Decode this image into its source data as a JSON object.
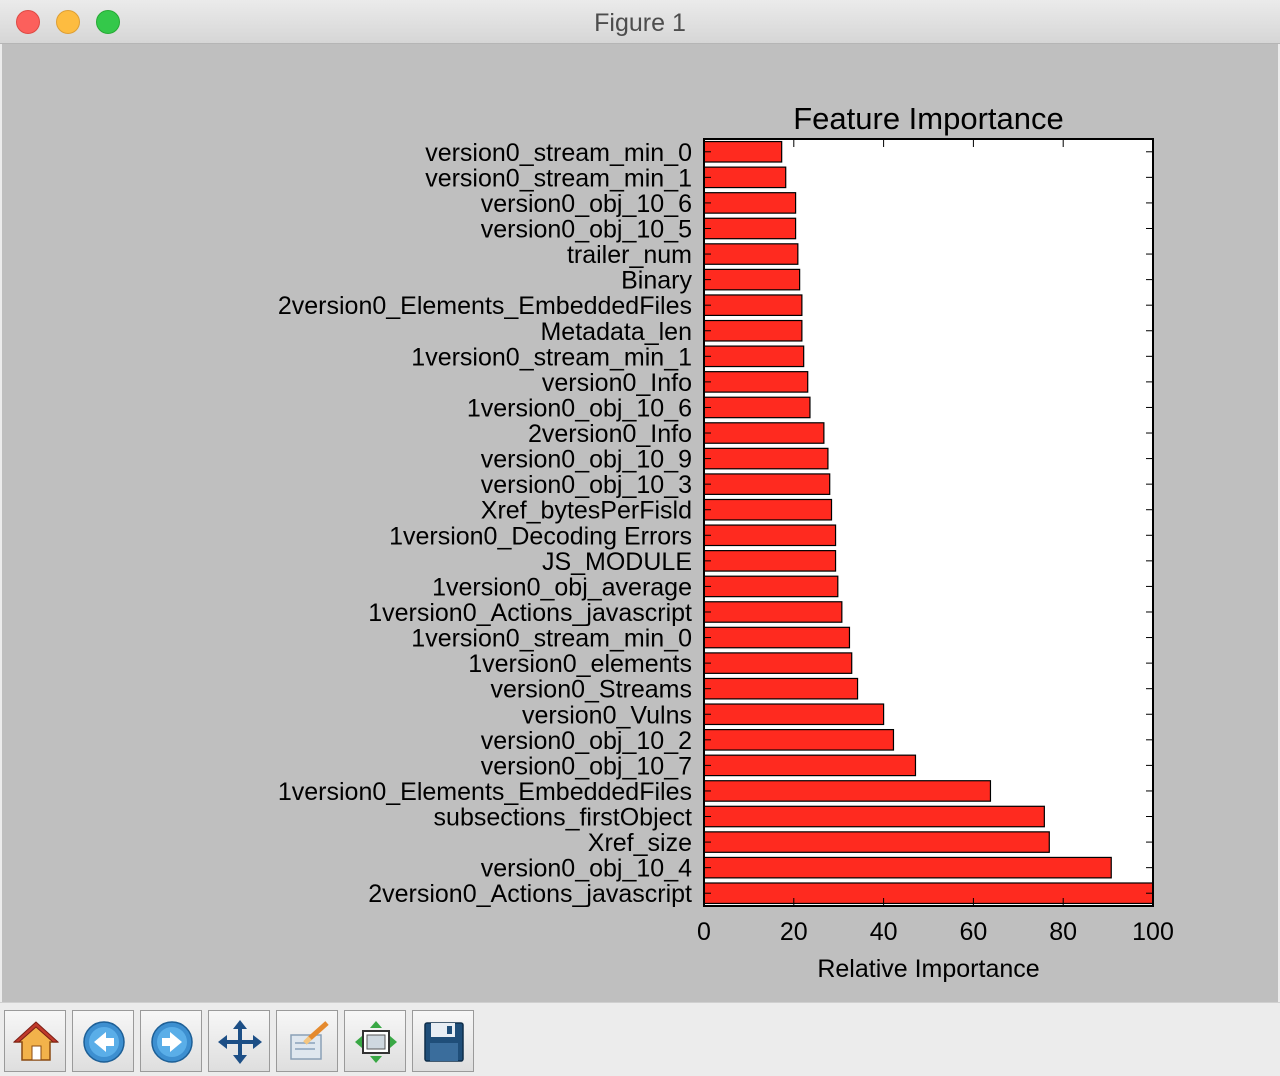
{
  "window": {
    "title": "Figure 1"
  },
  "toolbar": {
    "buttons": [
      {
        "icon": "home-icon"
      },
      {
        "icon": "back-arrow-icon"
      },
      {
        "icon": "forward-arrow-icon"
      },
      {
        "icon": "pan-icon"
      },
      {
        "icon": "zoom-rect-icon"
      },
      {
        "icon": "subplots-icon"
      },
      {
        "icon": "save-icon"
      }
    ]
  },
  "colors": {
    "bar_fill": "#ff2a1f",
    "bar_edge": "#000000",
    "plot_bg": "#ffffff",
    "figure_bg": "#bfbfbf"
  },
  "chart_data": {
    "type": "bar",
    "orientation": "horizontal",
    "title": "Feature Importance",
    "xlabel": "Relative Importance",
    "ylabel": "",
    "xlim": [
      0,
      100
    ],
    "xticks": [
      "0",
      "20",
      "40",
      "60",
      "80",
      "100"
    ],
    "grid": false,
    "legend": "none",
    "categories": [
      "version0_stream_min_0",
      "version0_stream_min_1",
      "version0_obj_10_6",
      "version0_obj_10_5",
      "trailer_num",
      "Binary",
      "2version0_Elements_EmbeddedFiles",
      "Metadata_len",
      "1version0_stream_min_1",
      "version0_Info",
      "1version0_obj_10_6",
      "2version0_Info",
      "version0_obj_10_9",
      "version0_obj_10_3",
      "Xref_bytesPerFisld",
      "1version0_Decoding Errors",
      "JS_MODULE",
      "1version0_obj_average",
      "1version0_Actions_javascript",
      "1version0_stream_min_0",
      "1version0_elements",
      "version0_Streams",
      "version0_Vulns",
      "version0_obj_10_2",
      "version0_obj_10_7",
      "1version0_Elements_EmbeddedFiles",
      "subsections_firstObject",
      "Xref_size",
      "version0_obj_10_4",
      "2version0_Actions_javascript"
    ],
    "values": [
      17.3,
      18.2,
      20.4,
      20.4,
      20.9,
      21.3,
      21.8,
      21.8,
      22.2,
      23.1,
      23.6,
      26.7,
      27.6,
      28.0,
      28.4,
      29.3,
      29.3,
      29.8,
      30.7,
      32.4,
      32.9,
      34.2,
      40.0,
      42.2,
      47.1,
      63.8,
      75.8,
      76.9,
      90.7,
      100.0
    ]
  }
}
